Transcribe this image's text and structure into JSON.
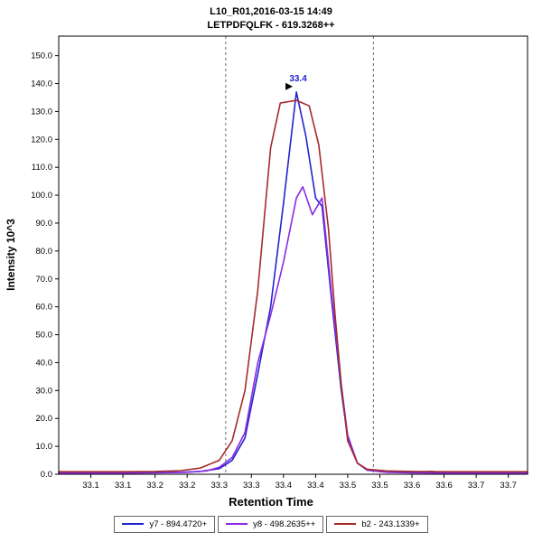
{
  "title": {
    "line1": "L10_R01,2016-03-15 14:49",
    "line2": "LETPDFQLFK - 619.3268++"
  },
  "chart_data": {
    "type": "line",
    "title": "L10_R01,2016-03-15 14:49 — LETPDFQLFK - 619.3268++",
    "xlabel": "Retention Time",
    "ylabel": "Intensity 10^3",
    "xlim": [
      33.05,
      33.78
    ],
    "ylim": [
      0,
      157
    ],
    "grid": false,
    "legend_position": "bottom",
    "x_ticks": {
      "positions": [
        33.1,
        33.15,
        33.2,
        33.25,
        33.3,
        33.35,
        33.4,
        33.45,
        33.5,
        33.55,
        33.6,
        33.65,
        33.7,
        33.75
      ],
      "labels": [
        "33.1",
        "33.1",
        "33.2",
        "33.2",
        "33.3",
        "33.3",
        "33.4",
        "33.4",
        "33.5",
        "33.5",
        "33.6",
        "33.6",
        "33.7",
        "33.7"
      ]
    },
    "y_ticks": {
      "positions": [
        0,
        10,
        20,
        30,
        40,
        50,
        60,
        70,
        80,
        90,
        100,
        110,
        120,
        130,
        140,
        150
      ],
      "labels": [
        "0.0",
        "10.0",
        "20.0",
        "30.0",
        "40.0",
        "50.0",
        "60.0",
        "70.0",
        "80.0",
        "90.0",
        "100.0",
        "110.0",
        "120.0",
        "130.0",
        "140.0",
        "150.0"
      ]
    },
    "integration_boundaries": [
      33.31,
      33.54
    ],
    "peak_annotation": {
      "label": "33.4",
      "x": 33.42,
      "y": 137,
      "color": "#2424cf"
    },
    "series": [
      {
        "name": "y7 - 894.4720+",
        "color": "#2424cf",
        "points": [
          [
            33.05,
            0.5
          ],
          [
            33.1,
            0.5
          ],
          [
            33.15,
            0.5
          ],
          [
            33.2,
            0.6
          ],
          [
            33.24,
            0.7
          ],
          [
            33.27,
            1.0
          ],
          [
            33.3,
            2.0
          ],
          [
            33.32,
            5.0
          ],
          [
            33.34,
            13.0
          ],
          [
            33.36,
            36.0
          ],
          [
            33.38,
            60.0
          ],
          [
            33.4,
            97.0
          ],
          [
            33.42,
            137.0
          ],
          [
            33.435,
            121.0
          ],
          [
            33.45,
            99.0
          ],
          [
            33.46,
            96.0
          ],
          [
            33.475,
            62.0
          ],
          [
            33.49,
            30.0
          ],
          [
            33.5,
            13.0
          ],
          [
            33.515,
            4.0
          ],
          [
            33.53,
            1.5
          ],
          [
            33.56,
            0.8
          ],
          [
            33.6,
            0.6
          ],
          [
            33.63,
            1.0
          ],
          [
            33.66,
            0.5
          ],
          [
            33.7,
            0.5
          ],
          [
            33.75,
            0.5
          ],
          [
            33.78,
            0.5
          ]
        ]
      },
      {
        "name": "y8 - 498.2635++",
        "color": "#8a2be2",
        "points": [
          [
            33.05,
            0.4
          ],
          [
            33.1,
            0.4
          ],
          [
            33.15,
            0.4
          ],
          [
            33.2,
            0.5
          ],
          [
            33.25,
            0.7
          ],
          [
            33.28,
            1.2
          ],
          [
            33.3,
            2.5
          ],
          [
            33.32,
            6.0
          ],
          [
            33.34,
            15.0
          ],
          [
            33.36,
            40.0
          ],
          [
            33.38,
            57.0
          ],
          [
            33.4,
            76.0
          ],
          [
            33.42,
            99.0
          ],
          [
            33.43,
            103.0
          ],
          [
            33.445,
            93.0
          ],
          [
            33.46,
            99.0
          ],
          [
            33.475,
            64.0
          ],
          [
            33.49,
            32.0
          ],
          [
            33.5,
            14.0
          ],
          [
            33.515,
            4.0
          ],
          [
            33.53,
            1.5
          ],
          [
            33.56,
            0.7
          ],
          [
            33.6,
            0.5
          ],
          [
            33.65,
            0.4
          ],
          [
            33.7,
            0.4
          ],
          [
            33.78,
            0.4
          ]
        ]
      },
      {
        "name": "b2 - 243.1339+",
        "color": "#a52a2a",
        "points": [
          [
            33.05,
            0.9
          ],
          [
            33.1,
            0.9
          ],
          [
            33.15,
            0.9
          ],
          [
            33.2,
            1.0
          ],
          [
            33.24,
            1.3
          ],
          [
            33.27,
            2.2
          ],
          [
            33.3,
            5.0
          ],
          [
            33.32,
            12.0
          ],
          [
            33.34,
            30.0
          ],
          [
            33.36,
            66.0
          ],
          [
            33.38,
            117.0
          ],
          [
            33.395,
            133.0
          ],
          [
            33.42,
            134.0
          ],
          [
            33.44,
            132.0
          ],
          [
            33.455,
            118.0
          ],
          [
            33.47,
            88.0
          ],
          [
            33.48,
            58.0
          ],
          [
            33.49,
            32.0
          ],
          [
            33.5,
            12.0
          ],
          [
            33.515,
            4.0
          ],
          [
            33.53,
            1.8
          ],
          [
            33.56,
            1.2
          ],
          [
            33.6,
            1.0
          ],
          [
            33.65,
            0.9
          ],
          [
            33.7,
            0.9
          ],
          [
            33.78,
            0.9
          ]
        ]
      }
    ],
    "styles": {
      "boundary_color": "#666666",
      "boundary_dash": "3,3",
      "plot_border_color": "#000000",
      "annotation_arrow_color": "#000000"
    }
  }
}
